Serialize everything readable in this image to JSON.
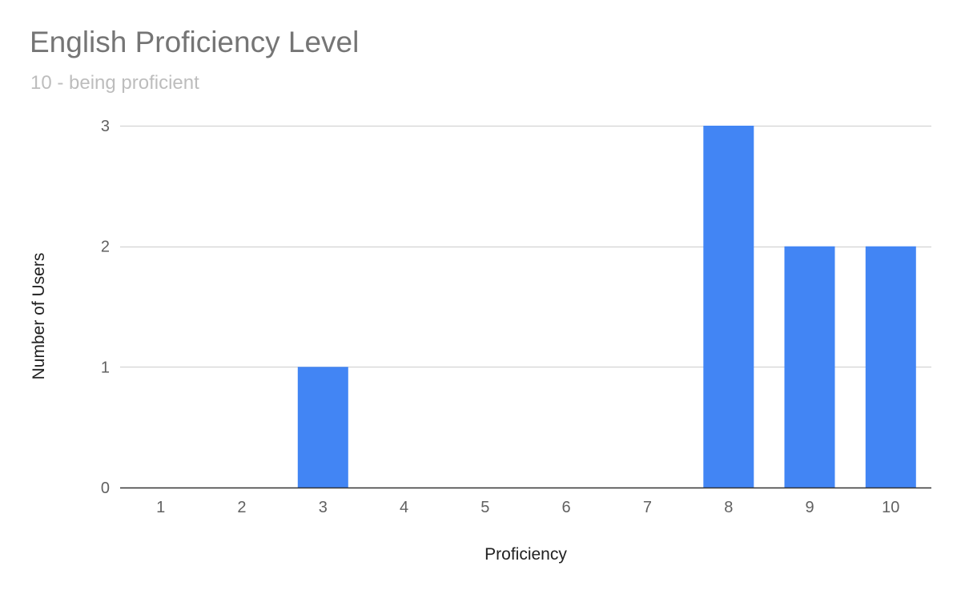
{
  "chart_data": {
    "type": "bar",
    "title": "English Proficiency Level",
    "subtitle": "10 - being proficient",
    "xlabel": "Proficiency",
    "ylabel": "Number of Users",
    "categories": [
      "1",
      "2",
      "3",
      "4",
      "5",
      "6",
      "7",
      "8",
      "9",
      "10"
    ],
    "values": [
      0,
      0,
      1,
      0,
      0,
      0,
      0,
      3,
      2,
      2
    ],
    "ylim": [
      0,
      3
    ],
    "yticks": [
      "0",
      "1",
      "2",
      "3"
    ],
    "grid": true,
    "legend": "none",
    "colors": {
      "bar": "#4285f4",
      "grid": "#cccccc",
      "axis": "#333333"
    }
  }
}
